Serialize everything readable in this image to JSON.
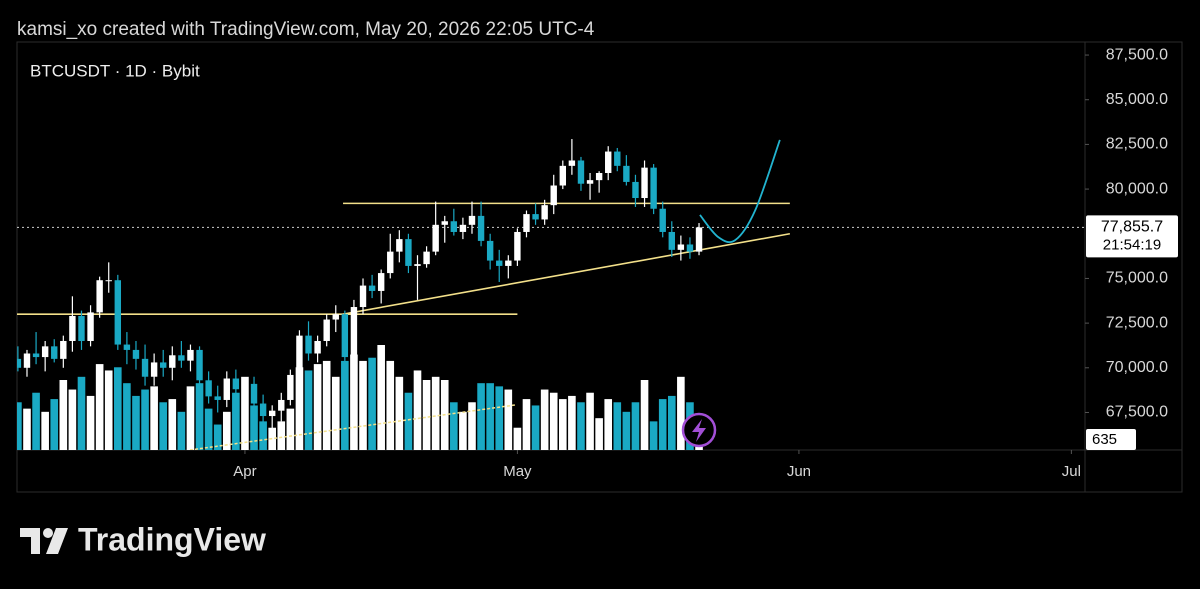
{
  "chart_data": {
    "type": "candlestick",
    "header": "kamsi_xo created with TradingView.com, May 20, 2026 22:05 UTC-4",
    "symbol": "BTCUSDT · 1D · Bybit",
    "footer": "TradingView",
    "up_color": "#ffffff",
    "down_color": "#1aa9c4",
    "open": [
      70500,
      70000,
      70800,
      70600,
      71200,
      70500,
      71500,
      72900,
      71500,
      73100,
      74900,
      74900,
      71300,
      71000,
      70500,
      69500,
      70300,
      70000,
      70700,
      70400,
      71000,
      69300,
      68400,
      68200,
      69400,
      68800,
      69100,
      68000,
      67300,
      67600,
      68200,
      69600,
      71800,
      70800,
      71500,
      72700,
      73000,
      70600,
      73400,
      74600,
      74300,
      75300,
      76500,
      77200,
      75700,
      75800,
      76500,
      78000,
      78200,
      77600,
      78000,
      78500,
      77100,
      76000,
      75700,
      76000,
      77600,
      78600,
      78300,
      79100,
      80200,
      81300,
      81600,
      80300,
      80500,
      80900,
      82100,
      81300,
      80400,
      79500,
      81200,
      78900,
      77600,
      76600,
      76900,
      76500
    ],
    "high": [
      71200,
      71000,
      72000,
      71500,
      71600,
      71800,
      74000,
      73200,
      73500,
      75100,
      75900,
      75200,
      72000,
      71500,
      71300,
      70800,
      71000,
      71200,
      71500,
      71300,
      71200,
      69800,
      69000,
      69800,
      69900,
      69400,
      69500,
      68500,
      67900,
      68600,
      69900,
      72100,
      72600,
      71800,
      73000,
      73500,
      73200,
      73800,
      75000,
      75200,
      75500,
      77500,
      77700,
      77500,
      76300,
      76800,
      79300,
      78500,
      78900,
      78400,
      79300,
      79300,
      77500,
      76600,
      76300,
      77800,
      78800,
      79200,
      79400,
      80800,
      81600,
      82800,
      81800,
      80900,
      81000,
      82400,
      82300,
      81900,
      80800,
      81600,
      81400,
      79300,
      78200,
      77400,
      77300,
      78100
    ],
    "low": [
      69800,
      69500,
      70200,
      69800,
      70300,
      70000,
      70900,
      71000,
      71200,
      72800,
      74200,
      71000,
      70200,
      69900,
      69000,
      69000,
      69500,
      69300,
      70000,
      69800,
      69000,
      68000,
      67500,
      67800,
      68500,
      68000,
      67800,
      66900,
      66600,
      67000,
      67900,
      69300,
      70400,
      70300,
      71200,
      72000,
      70300,
      70400,
      73000,
      73900,
      73600,
      75000,
      75900,
      75300,
      73800,
      75600,
      76300,
      77000,
      77400,
      77200,
      77500,
      76800,
      75500,
      74800,
      75000,
      75700,
      77300,
      78000,
      78000,
      78600,
      80000,
      80800,
      79900,
      79400,
      79800,
      80500,
      81000,
      80200,
      79000,
      79000,
      78600,
      77300,
      76200,
      76000,
      76100,
      76300
    ],
    "close": [
      70000,
      70800,
      70600,
      71200,
      70500,
      71500,
      72900,
      71500,
      73100,
      74900,
      74900,
      71300,
      71000,
      70500,
      69500,
      70300,
      70000,
      70700,
      70400,
      71000,
      69300,
      68400,
      68200,
      69400,
      68800,
      69100,
      68000,
      67300,
      67600,
      68200,
      69600,
      71800,
      70800,
      71500,
      72700,
      73000,
      70600,
      73400,
      74600,
      74300,
      75300,
      76500,
      77200,
      75700,
      75800,
      76500,
      78000,
      78200,
      77600,
      78000,
      78500,
      77100,
      76000,
      75700,
      76000,
      77600,
      78600,
      78300,
      79100,
      80200,
      81300,
      81600,
      80300,
      80500,
      80900,
      82100,
      81300,
      80400,
      79500,
      81200,
      78900,
      77600,
      76600,
      76900,
      76500,
      77855.7
    ],
    "volume": [
      1500,
      1300,
      1800,
      1200,
      1600,
      2200,
      1900,
      2300,
      1700,
      2700,
      2500,
      2600,
      2100,
      1700,
      1900,
      2000,
      1500,
      1600,
      1200,
      2000,
      2100,
      1300,
      800,
      1200,
      1800,
      2300,
      1400,
      900,
      700,
      900,
      1300,
      2600,
      2500,
      2700,
      2800,
      2300,
      2800,
      3000,
      2800,
      2900,
      3300,
      2800,
      2300,
      1800,
      2500,
      2200,
      2300,
      2200,
      1500,
      1200,
      1500,
      2100,
      2100,
      2000,
      1900,
      700,
      1600,
      1400,
      1900,
      1800,
      1600,
      1700,
      1500,
      1800,
      1000,
      1600,
      1500,
      1200,
      1500,
      2200,
      900,
      1600,
      1700,
      2300,
      1500,
      635
    ],
    "price_line": {
      "value": 77855.7,
      "label": "77,855.7"
    },
    "countdown": "21:54:19",
    "xlim": [
      -0.1,
      117.5
    ],
    "xticks": [
      {
        "value": 25,
        "label": "Apr"
      },
      {
        "value": 55,
        "label": "May"
      },
      {
        "value": 86,
        "label": "Jun"
      },
      {
        "value": 116,
        "label": "Jul"
      }
    ],
    "ylim": [
      65400,
      88230
    ],
    "yticks": [
      {
        "value": 67500,
        "label": "67,500.0"
      },
      {
        "value": 70000,
        "label": "70,000.0"
      },
      {
        "value": 72500,
        "label": "72,500.0"
      },
      {
        "value": 75000,
        "label": "75,000.0"
      },
      {
        "value": 80000,
        "label": "80,000.0"
      },
      {
        "value": 82500,
        "label": "82,500.0"
      },
      {
        "value": 85000,
        "label": "85,000.0"
      },
      {
        "value": 87500,
        "label": "87,500.0"
      }
    ],
    "lines": [
      {
        "color": "#f3e08a",
        "x": [
          35.8,
          85.0
        ],
        "y": [
          79200,
          79200
        ]
      },
      {
        "color": "#f3e08a",
        "x": [
          -0.1,
          55.0
        ],
        "y": [
          73000,
          73000
        ]
      },
      {
        "color": "#f3e08a",
        "x": [
          35.8,
          85.0
        ],
        "y": [
          73000,
          77500
        ]
      }
    ],
    "curve": {
      "color": "#22b4d0",
      "x": [
        75.1,
        77.1,
        79.0,
        81.2,
        83.9
      ],
      "y": [
        78551,
        77320,
        77150,
        78830,
        82750
      ]
    }
  }
}
